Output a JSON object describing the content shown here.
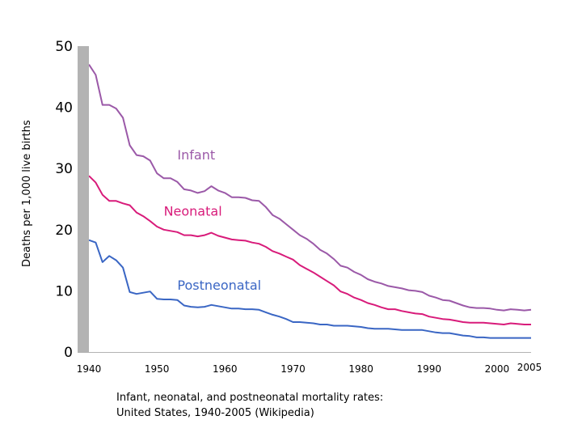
{
  "caption": "Infant, neonatal, and postneonatal mortality rates: United States, 1940-2005 (Wikipedia)",
  "chart_data": {
    "type": "line",
    "ylabel": "Deaths per 1,000 live births",
    "xlabel": "",
    "xlim": [
      1940,
      2005
    ],
    "ylim": [
      0,
      50
    ],
    "yticks": [
      0,
      10,
      20,
      30,
      40,
      50
    ],
    "xticks": [
      1940,
      1950,
      1960,
      1970,
      1980,
      1990,
      2000,
      2005
    ],
    "grid": false,
    "series": [
      {
        "name": "Infant",
        "color": "#9b59a8",
        "x": [
          1940,
          1941,
          1942,
          1943,
          1944,
          1945,
          1946,
          1947,
          1948,
          1949,
          1950,
          1951,
          1952,
          1953,
          1954,
          1955,
          1956,
          1957,
          1958,
          1959,
          1960,
          1961,
          1962,
          1963,
          1964,
          1965,
          1966,
          1967,
          1968,
          1969,
          1970,
          1971,
          1972,
          1973,
          1974,
          1975,
          1976,
          1977,
          1978,
          1979,
          1980,
          1981,
          1982,
          1983,
          1984,
          1985,
          1986,
          1987,
          1988,
          1989,
          1990,
          1991,
          1992,
          1993,
          1994,
          1995,
          1996,
          1997,
          1998,
          1999,
          2000,
          2001,
          2002,
          2003,
          2004,
          2005
        ],
        "y": [
          47.0,
          45.3,
          40.4,
          40.4,
          39.8,
          38.3,
          33.8,
          32.2,
          32.0,
          31.3,
          29.2,
          28.4,
          28.4,
          27.8,
          26.6,
          26.4,
          26.0,
          26.3,
          27.1,
          26.4,
          26.0,
          25.3,
          25.3,
          25.2,
          24.8,
          24.7,
          23.7,
          22.4,
          21.8,
          20.9,
          20.0,
          19.1,
          18.5,
          17.7,
          16.7,
          16.1,
          15.2,
          14.1,
          13.8,
          13.1,
          12.6,
          11.9,
          11.5,
          11.2,
          10.8,
          10.6,
          10.4,
          10.1,
          10.0,
          9.8,
          9.2,
          8.9,
          8.5,
          8.4,
          8.0,
          7.6,
          7.3,
          7.2,
          7.2,
          7.1,
          6.9,
          6.8,
          7.0,
          6.9,
          6.8,
          6.9
        ]
      },
      {
        "name": "Neonatal",
        "color": "#d81b7a",
        "x": [
          1940,
          1941,
          1942,
          1943,
          1944,
          1945,
          1946,
          1947,
          1948,
          1949,
          1950,
          1951,
          1952,
          1953,
          1954,
          1955,
          1956,
          1957,
          1958,
          1959,
          1960,
          1961,
          1962,
          1963,
          1964,
          1965,
          1966,
          1967,
          1968,
          1969,
          1970,
          1971,
          1972,
          1973,
          1974,
          1975,
          1976,
          1977,
          1978,
          1979,
          1980,
          1981,
          1982,
          1983,
          1984,
          1985,
          1986,
          1987,
          1988,
          1989,
          1990,
          1991,
          1992,
          1993,
          1994,
          1995,
          1996,
          1997,
          1998,
          1999,
          2000,
          2001,
          2002,
          2003,
          2004,
          2005
        ],
        "y": [
          28.8,
          27.7,
          25.7,
          24.7,
          24.7,
          24.3,
          24.0,
          22.8,
          22.2,
          21.4,
          20.5,
          20.0,
          19.8,
          19.6,
          19.1,
          19.1,
          18.9,
          19.1,
          19.5,
          19.0,
          18.7,
          18.4,
          18.3,
          18.2,
          17.9,
          17.7,
          17.2,
          16.5,
          16.1,
          15.6,
          15.1,
          14.2,
          13.6,
          13.0,
          12.3,
          11.6,
          10.9,
          9.9,
          9.5,
          8.9,
          8.5,
          8.0,
          7.7,
          7.3,
          7.0,
          7.0,
          6.7,
          6.5,
          6.3,
          6.2,
          5.8,
          5.6,
          5.4,
          5.3,
          5.1,
          4.9,
          4.8,
          4.8,
          4.8,
          4.7,
          4.6,
          4.5,
          4.7,
          4.6,
          4.5,
          4.5
        ]
      },
      {
        "name": "Postneonatal",
        "color": "#3a66c4",
        "x": [
          1940,
          1941,
          1942,
          1943,
          1944,
          1945,
          1946,
          1947,
          1948,
          1949,
          1950,
          1951,
          1952,
          1953,
          1954,
          1955,
          1956,
          1957,
          1958,
          1959,
          1960,
          1961,
          1962,
          1963,
          1964,
          1965,
          1966,
          1967,
          1968,
          1969,
          1970,
          1971,
          1972,
          1973,
          1974,
          1975,
          1976,
          1977,
          1978,
          1979,
          1980,
          1981,
          1982,
          1983,
          1984,
          1985,
          1986,
          1987,
          1988,
          1989,
          1990,
          1991,
          1992,
          1993,
          1994,
          1995,
          1996,
          1997,
          1998,
          1999,
          2000,
          2001,
          2002,
          2003,
          2004,
          2005
        ],
        "y": [
          18.3,
          17.9,
          14.7,
          15.7,
          15.0,
          13.8,
          9.8,
          9.5,
          9.7,
          9.9,
          8.7,
          8.6,
          8.6,
          8.5,
          7.6,
          7.4,
          7.3,
          7.4,
          7.7,
          7.5,
          7.3,
          7.1,
          7.1,
          7.0,
          7.0,
          6.9,
          6.5,
          6.1,
          5.8,
          5.4,
          4.9,
          4.9,
          4.8,
          4.7,
          4.5,
          4.5,
          4.3,
          4.3,
          4.3,
          4.2,
          4.1,
          3.9,
          3.8,
          3.8,
          3.8,
          3.7,
          3.6,
          3.6,
          3.6,
          3.6,
          3.4,
          3.2,
          3.1,
          3.1,
          2.9,
          2.7,
          2.6,
          2.4,
          2.4,
          2.3,
          2.3,
          2.3,
          2.3,
          2.3,
          2.3,
          2.3
        ]
      }
    ]
  }
}
